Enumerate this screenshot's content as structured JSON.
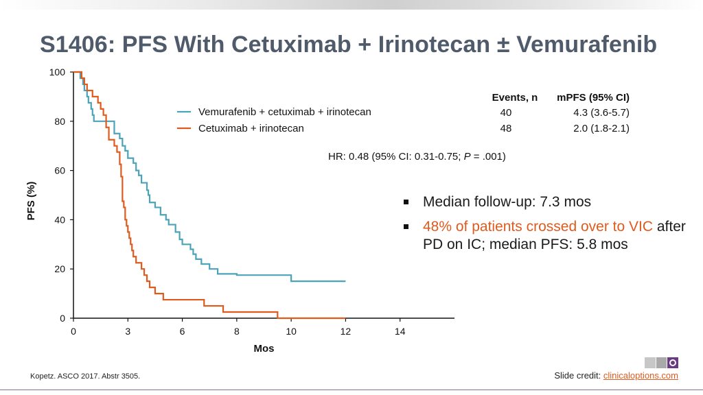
{
  "slide": {
    "title": "S1406: PFS With Cetuximab + Irinotecan ± Vemurafenib",
    "citation": "Kopetz. ASCO 2017. Abstr 3505.",
    "credit_prefix": "Slide credit: ",
    "credit_link": "clinicaloptions.com",
    "bullets": [
      {
        "text": "Median follow-up: 7.3 mos",
        "accent": "",
        "rest": ""
      },
      {
        "text": "",
        "accent": "48% of patients crossed over to VIC",
        "rest": "after PD on IC; median PFS: 5.8 mos"
      }
    ],
    "colors": {
      "title": "#4f5a6a",
      "accent": "#e05a1e",
      "brand": "#6b3a84"
    }
  },
  "chart_data": {
    "type": "line",
    "step": true,
    "title": "",
    "xlabel": "Mos",
    "ylabel": "PFS (%)",
    "xlim": [
      0,
      14
    ],
    "ylim": [
      0,
      100
    ],
    "x_ticks": [
      {
        "value": 0,
        "label": "0"
      },
      {
        "value": 2,
        "label": "3"
      },
      {
        "value": 4,
        "label": "6"
      },
      {
        "value": 6,
        "label": "8"
      },
      {
        "value": 8,
        "label": "10"
      },
      {
        "value": 10,
        "label": "12"
      },
      {
        "value": 12,
        "label": "14"
      }
    ],
    "y_ticks": [
      {
        "value": 0,
        "label": "0"
      },
      {
        "value": 20,
        "label": "20"
      },
      {
        "value": 40,
        "label": "40"
      },
      {
        "value": 60,
        "label": "60"
      },
      {
        "value": 80,
        "label": "80"
      },
      {
        "value": 100,
        "label": "100"
      }
    ],
    "grid": false,
    "legend_position": "top-center",
    "series": [
      {
        "name": "Vemurafenib + cetuximab + irinotecan",
        "color": "#4aa3b8",
        "points": [
          [
            0,
            100
          ],
          [
            0.25,
            97.5
          ],
          [
            0.35,
            95
          ],
          [
            0.4,
            92.5
          ],
          [
            0.5,
            90
          ],
          [
            0.55,
            87.5
          ],
          [
            0.65,
            85
          ],
          [
            0.7,
            82.5
          ],
          [
            0.75,
            80
          ],
          [
            0.9,
            80
          ],
          [
            1.2,
            80
          ],
          [
            1.5,
            78
          ],
          [
            1.5,
            75
          ],
          [
            1.7,
            73
          ],
          [
            1.8,
            70
          ],
          [
            1.9,
            68
          ],
          [
            2.0,
            65
          ],
          [
            2.2,
            63
          ],
          [
            2.3,
            60
          ],
          [
            2.4,
            58
          ],
          [
            2.5,
            55
          ],
          [
            2.7,
            52
          ],
          [
            2.75,
            50
          ],
          [
            2.8,
            47
          ],
          [
            3.0,
            45
          ],
          [
            3.2,
            42
          ],
          [
            3.4,
            40
          ],
          [
            3.5,
            38
          ],
          [
            3.75,
            35
          ],
          [
            3.9,
            32
          ],
          [
            4.0,
            30
          ],
          [
            4.3,
            28
          ],
          [
            4.4,
            26
          ],
          [
            4.5,
            24
          ],
          [
            4.7,
            22
          ],
          [
            5.0,
            20
          ],
          [
            5.3,
            18
          ],
          [
            6.0,
            17.5
          ],
          [
            6.5,
            17.5
          ],
          [
            7.5,
            17.5
          ],
          [
            8.0,
            15
          ],
          [
            8.4,
            15
          ],
          [
            10.0,
            15
          ]
        ]
      },
      {
        "name": "Cetuximab + irinotecan",
        "color": "#e05a1e",
        "points": [
          [
            0,
            100
          ],
          [
            0.3,
            97.5
          ],
          [
            0.4,
            95
          ],
          [
            0.5,
            92.5
          ],
          [
            0.7,
            90
          ],
          [
            0.9,
            87.5
          ],
          [
            1.0,
            85
          ],
          [
            1.1,
            82.5
          ],
          [
            1.2,
            77.5
          ],
          [
            1.3,
            72.5
          ],
          [
            1.5,
            70
          ],
          [
            1.6,
            67.5
          ],
          [
            1.7,
            62.5
          ],
          [
            1.75,
            57.5
          ],
          [
            1.8,
            52.5
          ],
          [
            1.8,
            47.5
          ],
          [
            1.85,
            45
          ],
          [
            1.9,
            40
          ],
          [
            1.95,
            37.5
          ],
          [
            2.0,
            35
          ],
          [
            2.05,
            32.5
          ],
          [
            2.1,
            30
          ],
          [
            2.15,
            27.5
          ],
          [
            2.2,
            25
          ],
          [
            2.3,
            22.5
          ],
          [
            2.5,
            20
          ],
          [
            2.6,
            17.5
          ],
          [
            2.7,
            15
          ],
          [
            2.8,
            12.5
          ],
          [
            3.0,
            10
          ],
          [
            3.3,
            7.5
          ],
          [
            3.7,
            7.5
          ],
          [
            4.6,
            7.5
          ],
          [
            4.8,
            5
          ],
          [
            5.1,
            5
          ],
          [
            5.5,
            2.5
          ],
          [
            6.1,
            2.5
          ],
          [
            7.0,
            2.5
          ],
          [
            7.5,
            0
          ],
          [
            8.0,
            0
          ],
          [
            8.5,
            -2.5
          ],
          [
            9.4,
            -2.5
          ],
          [
            10.0,
            -2.5
          ]
        ]
      }
    ],
    "table": {
      "headers": [
        "Events, n",
        "mPFS (95% CI)"
      ],
      "rows": [
        [
          "40",
          "4.3 (3.6-5.7)"
        ],
        [
          "48",
          "2.0 (1.8-2.1)"
        ]
      ]
    },
    "annotation": {
      "prefix": "HR: 0.48 (95% CI: 0.31-0.75; ",
      "italic": "P",
      "suffix": " = .001)"
    }
  }
}
